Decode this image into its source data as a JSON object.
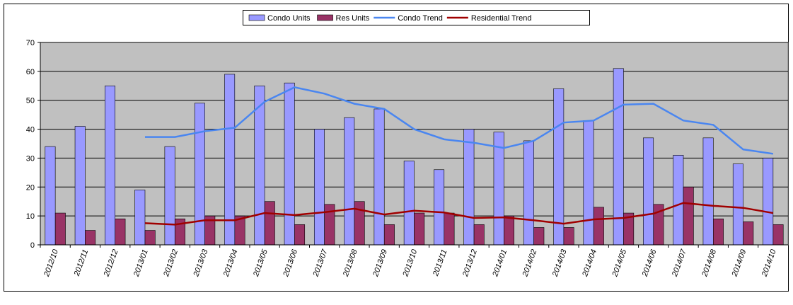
{
  "chart_data": {
    "type": "bar",
    "categories": [
      "2012/10",
      "2012/11",
      "2012/12",
      "2013/01",
      "2013/02",
      "2013/03",
      "2013/04",
      "2013/05",
      "2013/06",
      "2013/07",
      "2013/08",
      "2013/09",
      "2013/10",
      "2013/11",
      "2013/12",
      "2014/01",
      "2014/02",
      "2014/03",
      "2014/04",
      "2014/05",
      "2014/06",
      "2014/07",
      "2014/08",
      "2014/09",
      "2014/10"
    ],
    "series": [
      {
        "name": "Condo Units",
        "type": "bar",
        "color": "#9999ff",
        "values": [
          34,
          41,
          55,
          19,
          34,
          49,
          59,
          55,
          56,
          40,
          44,
          47,
          29,
          26,
          40,
          39,
          36,
          54,
          43,
          61,
          37,
          31,
          37,
          28,
          30
        ]
      },
      {
        "name": "Res Units",
        "type": "bar",
        "color": "#993366",
        "values": [
          11,
          5,
          9,
          5,
          9,
          10,
          10,
          15,
          7,
          14,
          15,
          7,
          11,
          11,
          7,
          10,
          6,
          6,
          13,
          11,
          14,
          20,
          9,
          8,
          7
        ]
      },
      {
        "name": "Condo Trend",
        "type": "line",
        "color": "#4a86f0",
        "values": [
          null,
          null,
          null,
          37.3,
          37.3,
          39.3,
          40.5,
          49.5,
          54.5,
          52.3,
          48.8,
          47,
          40,
          36.5,
          35.3,
          33.5,
          36,
          42.3,
          43,
          48.5,
          48.8,
          43,
          41.5,
          33,
          31.5
        ]
      },
      {
        "name": "Residential Trend",
        "type": "line",
        "color": "#a00000",
        "values": [
          null,
          null,
          null,
          7.5,
          7,
          8.5,
          8.5,
          11,
          10.3,
          11.3,
          12.5,
          10.5,
          11.8,
          11.2,
          9.3,
          9.5,
          8.5,
          7.3,
          8.8,
          9.3,
          10.8,
          14.5,
          13.5,
          12.8,
          11
        ]
      }
    ],
    "ylim": [
      0,
      70
    ],
    "yticks": [
      0,
      10,
      20,
      30,
      40,
      50,
      60,
      70
    ],
    "grid": true,
    "legend": "top"
  }
}
